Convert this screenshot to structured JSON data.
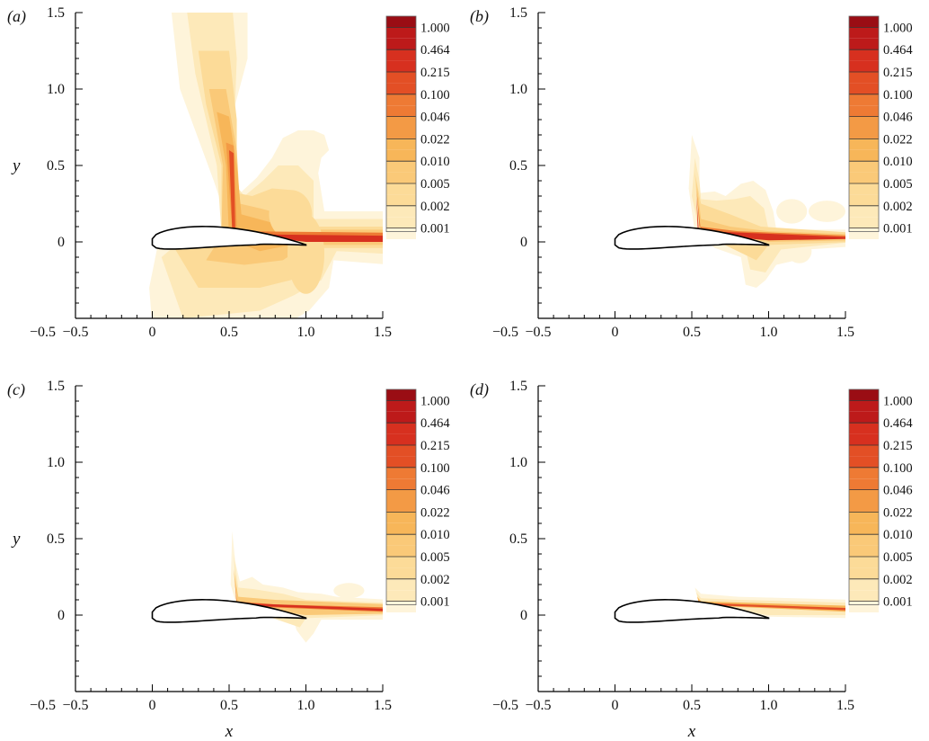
{
  "chart_data": [
    {
      "type": "heatmap",
      "panel_label": "(a)",
      "xlabel": "",
      "ylabel": "y",
      "xlim": [
        -0.5,
        1.5
      ],
      "ylim": [
        -0.5,
        1.5
      ],
      "x_ticks": [
        "−0.5",
        "0",
        "0.5",
        "1.0",
        "1.5"
      ],
      "y_ticks": [
        "1.5",
        "1.0",
        "0.5",
        "0"
      ],
      "y_bottom_label": "−0.5",
      "colorbar_levels": [
        "1.000",
        "0.464",
        "0.215",
        "0.100",
        "0.046",
        "0.022",
        "0.010",
        "0.005",
        "0.002",
        "0.001"
      ],
      "colorbar_scale": "log",
      "contour_extent": "large"
    },
    {
      "type": "heatmap",
      "panel_label": "(b)",
      "xlabel": "",
      "ylabel": "",
      "xlim": [
        -0.5,
        1.5
      ],
      "ylim": [
        -0.5,
        1.5
      ],
      "x_ticks": [
        "−0.5",
        "0",
        "0.5",
        "1.0",
        "1.5"
      ],
      "y_ticks": [
        "1.5",
        "1.0",
        "0.5",
        "0"
      ],
      "y_bottom_label": "−0.5",
      "colorbar_levels": [
        "1.000",
        "0.464",
        "0.215",
        "0.100",
        "0.046",
        "0.022",
        "0.010",
        "0.005",
        "0.002",
        "0.001"
      ],
      "colorbar_scale": "log",
      "contour_extent": "medium"
    },
    {
      "type": "heatmap",
      "panel_label": "(c)",
      "xlabel": "x",
      "ylabel": "y",
      "xlim": [
        -0.5,
        1.5
      ],
      "ylim": [
        -0.5,
        1.5
      ],
      "x_ticks": [
        "−0.5",
        "0",
        "0.5",
        "1.0",
        "1.5"
      ],
      "y_ticks": [
        "1.5",
        "1.0",
        "0.5",
        "0"
      ],
      "y_bottom_label": "−0.5",
      "colorbar_levels": [
        "1.000",
        "0.464",
        "0.215",
        "0.100",
        "0.046",
        "0.022",
        "0.010",
        "0.005",
        "0.002",
        "0.001"
      ],
      "colorbar_scale": "log",
      "contour_extent": "small"
    },
    {
      "type": "heatmap",
      "panel_label": "(d)",
      "xlabel": "x",
      "ylabel": "",
      "xlim": [
        -0.5,
        1.5
      ],
      "ylim": [
        -0.5,
        1.5
      ],
      "x_ticks": [
        "−0.5",
        "0",
        "0.5",
        "1.0",
        "1.5"
      ],
      "y_ticks": [
        "1.5",
        "1.0",
        "0.5",
        "0"
      ],
      "y_bottom_label": "−0.5",
      "colorbar_levels": [
        "1.000",
        "0.464",
        "0.215",
        "0.100",
        "0.046",
        "0.022",
        "0.010",
        "0.005",
        "0.002",
        "0.001"
      ],
      "colorbar_scale": "log",
      "contour_extent": "minimal"
    }
  ],
  "colors": {
    "levels": [
      "#9a0d14",
      "#bd1a1a",
      "#d7301f",
      "#e34f25",
      "#ee7a34",
      "#f39a45",
      "#f7b659",
      "#fac978",
      "#fcdb98",
      "#fde9b9",
      "#fef4da",
      "#ffffff"
    ],
    "airfoil": "#000000",
    "axis": "#000000"
  }
}
